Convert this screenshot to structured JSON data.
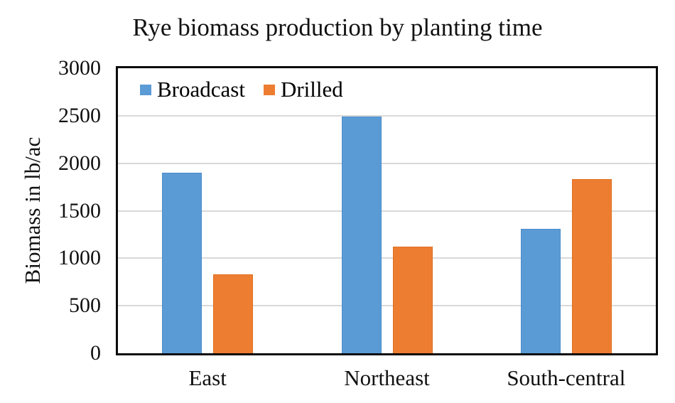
{
  "chart_data": {
    "type": "bar",
    "title": "Rye biomass production by planting time",
    "ylabel": "Biomass in lb/ac",
    "xlabel": "",
    "categories": [
      "East",
      "Northeast",
      "South-central"
    ],
    "series": [
      {
        "name": "Broadcast",
        "color": "#5B9BD5",
        "border_color": "#4a8ccb",
        "values": [
          1900,
          2490,
          1310
        ]
      },
      {
        "name": "Drilled",
        "color": "#ED7D31",
        "border_color": "#e0701f",
        "values": [
          830,
          1120,
          1830
        ]
      }
    ],
    "ylim": [
      0,
      3000
    ],
    "ytick_step": 500,
    "ytick_labels": [
      "0",
      "500",
      "1000",
      "1500",
      "2000",
      "2500",
      "3000"
    ],
    "grid": true,
    "gridline_color": "#D9D9D9",
    "axis_color": "#0b0b0b",
    "legend_position": "top-left-inside",
    "background": "#FFFFFF"
  }
}
